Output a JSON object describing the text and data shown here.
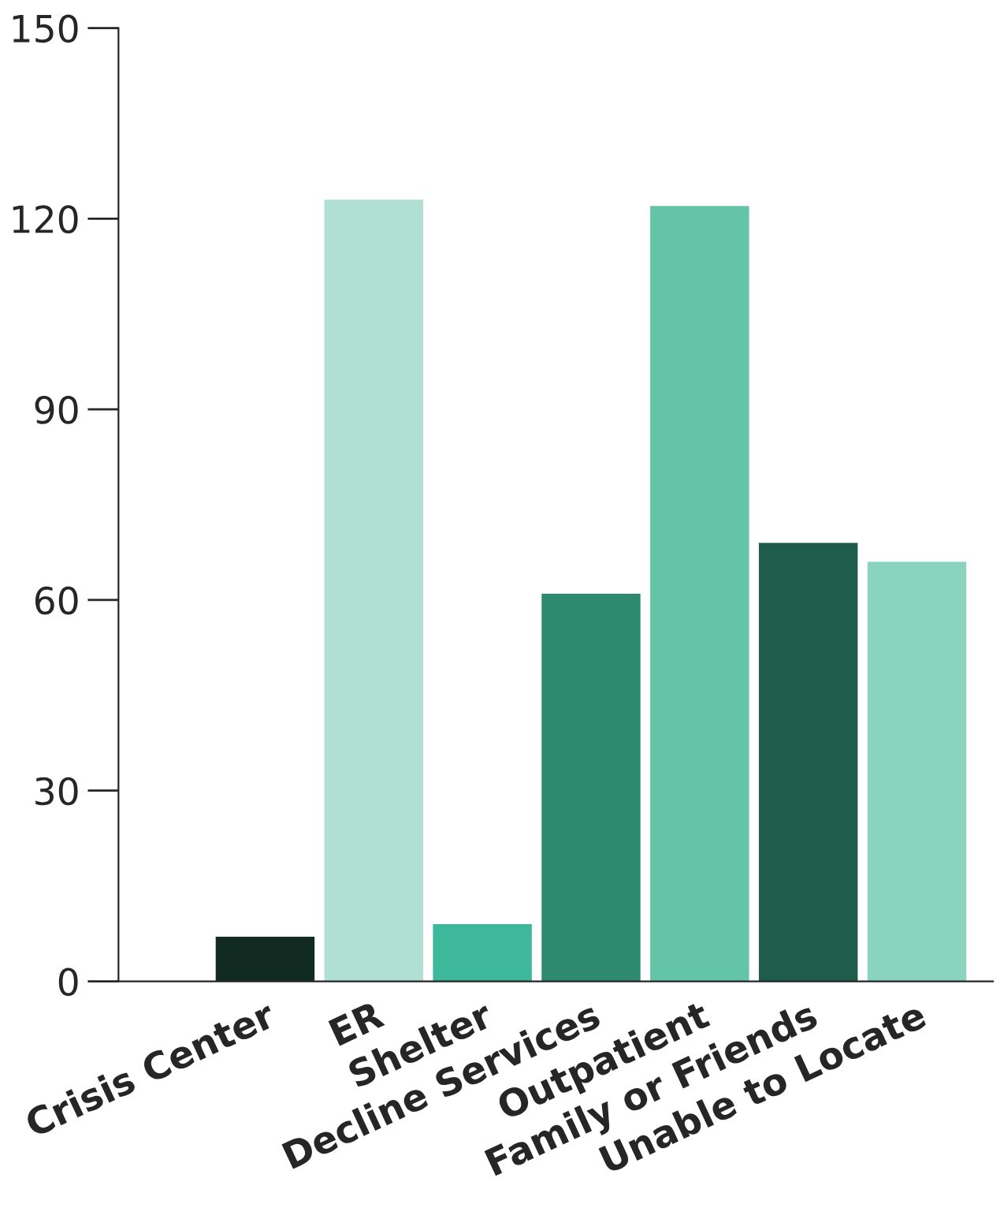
{
  "chart_data": {
    "type": "bar",
    "categories": [
      "Crisis Center",
      "ER",
      "Shelter",
      "Decline Services",
      "Outpatient",
      "Family or Friends",
      "Unable to Locate"
    ],
    "values": [
      7,
      123,
      9,
      61,
      122,
      69,
      66
    ],
    "colors": [
      "#122b22",
      "#b0e0d3",
      "#3db89a",
      "#2e8a6e",
      "#64c4a8",
      "#1f5c4b",
      "#8ad4bf"
    ],
    "ylim": [
      0,
      150
    ],
    "yticks": [
      0,
      30,
      60,
      90,
      120,
      150
    ],
    "grid": false,
    "legend": false
  }
}
